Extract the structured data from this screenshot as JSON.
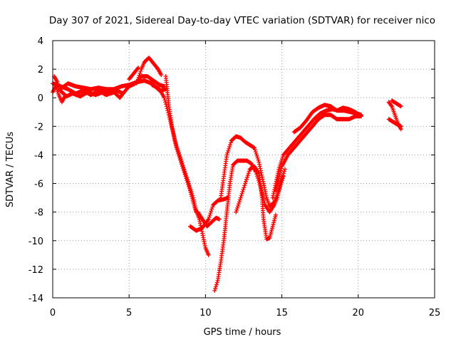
{
  "chart_data": {
    "type": "scatter",
    "title": "Day 307 of 2021, Sidereal Day-to-day VTEC variation (SDTVAR) for receiver nico",
    "xlabel": "GPS time / hours",
    "ylabel": "SDTVAR / TECUs",
    "xlim": [
      0,
      25
    ],
    "ylim": [
      -14,
      4
    ],
    "xticks": [
      0,
      5,
      10,
      15,
      20,
      25
    ],
    "yticks": [
      -14,
      -12,
      -10,
      -8,
      -6,
      -4,
      -2,
      0,
      2,
      4
    ],
    "grid": true,
    "marker": "plus",
    "series": [
      {
        "name": "SDTVAR",
        "color": "#ff0000",
        "tracks": [
          [
            [
              0,
              0.4
            ],
            [
              0.2,
              0.8
            ],
            [
              0.4,
              0.2
            ],
            [
              0.6,
              -0.3
            ],
            [
              0.8,
              0.1
            ]
          ],
          [
            [
              0,
              1.0
            ],
            [
              0.3,
              0.9
            ],
            [
              0.6,
              0.7
            ],
            [
              1.0,
              1.0
            ],
            [
              1.5,
              0.8
            ],
            [
              2.0,
              0.7
            ],
            [
              2.5,
              0.6
            ],
            [
              3.0,
              0.7
            ],
            [
              3.5,
              0.6
            ],
            [
              4.0,
              0.6
            ],
            [
              4.5,
              0.8
            ],
            [
              5.0,
              0.9
            ],
            [
              5.5,
              1.1
            ],
            [
              6.0,
              1.2
            ],
            [
              6.5,
              1.0
            ],
            [
              7.0,
              0.5
            ],
            [
              7.4,
              0.6
            ]
          ],
          [
            [
              0.1,
              1.5
            ],
            [
              0.3,
              1.1
            ],
            [
              0.5,
              0.5
            ],
            [
              0.9,
              0.1
            ],
            [
              1.3,
              0.3
            ],
            [
              1.8,
              0.1
            ],
            [
              2.3,
              0.4
            ],
            [
              2.8,
              0.2
            ],
            [
              3.3,
              0.4
            ],
            [
              3.8,
              0.3
            ],
            [
              4.2,
              0.5
            ],
            [
              4.6,
              0.3
            ],
            [
              5.0,
              0.8
            ],
            [
              5.4,
              1.0
            ],
            [
              5.8,
              1.5
            ],
            [
              6.2,
              1.5
            ],
            [
              6.6,
              1.2
            ],
            [
              7.0,
              0.9
            ],
            [
              7.3,
              0.8
            ]
          ],
          [
            [
              0.5,
              0.8
            ],
            [
              1.0,
              0.6
            ],
            [
              1.5,
              0.3
            ],
            [
              2.0,
              0.5
            ],
            [
              2.5,
              0.2
            ],
            [
              3.0,
              0.5
            ],
            [
              3.5,
              0.2
            ],
            [
              4.0,
              0.4
            ],
            [
              4.4,
              0.0
            ],
            [
              4.6,
              0.3
            ]
          ],
          [
            [
              5.5,
              1.0
            ],
            [
              5.8,
              2.0
            ],
            [
              6.0,
              2.5
            ],
            [
              6.3,
              2.8
            ],
            [
              6.6,
              2.4
            ],
            [
              6.9,
              2.0
            ],
            [
              7.1,
              1.6
            ]
          ],
          [
            [
              5.0,
              1.3
            ],
            [
              5.3,
              1.7
            ],
            [
              5.6,
              2.1
            ]
          ],
          [
            [
              6.5,
              0.9
            ],
            [
              7.0,
              0.6
            ],
            [
              7.3,
              0.0
            ],
            [
              7.6,
              -1.2
            ],
            [
              7.9,
              -2.5
            ],
            [
              8.1,
              -3.5
            ],
            [
              8.4,
              -4.5
            ],
            [
              8.7,
              -5.5
            ],
            [
              9.0,
              -6.5
            ],
            [
              9.3,
              -7.7
            ],
            [
              9.6,
              -8.5
            ],
            [
              9.8,
              -9.5
            ],
            [
              10.0,
              -10.5
            ],
            [
              10.2,
              -11.0
            ]
          ],
          [
            [
              7.4,
              1.5
            ],
            [
              7.6,
              -0.5
            ],
            [
              7.8,
              -2.0
            ],
            [
              8.0,
              -3.0
            ],
            [
              8.3,
              -4.0
            ],
            [
              8.6,
              -5.0
            ],
            [
              8.9,
              -6.0
            ],
            [
              9.2,
              -7.0
            ],
            [
              9.4,
              -8.0
            ]
          ],
          [
            [
              9.5,
              -8.0
            ],
            [
              9.8,
              -8.5
            ],
            [
              10.1,
              -9.0
            ],
            [
              10.4,
              -8.7
            ],
            [
              10.7,
              -8.4
            ],
            [
              10.9,
              -8.5
            ]
          ],
          [
            [
              9.0,
              -9.0
            ],
            [
              9.4,
              -9.3
            ],
            [
              9.8,
              -9.1
            ],
            [
              10.2,
              -8.5
            ],
            [
              10.5,
              -7.5
            ],
            [
              10.8,
              -7.2
            ],
            [
              11.2,
              -7.1
            ],
            [
              11.5,
              -7.0
            ]
          ],
          [
            [
              10.6,
              -13.5
            ],
            [
              10.8,
              -12.8
            ],
            [
              11.0,
              -11.5
            ],
            [
              11.2,
              -10.0
            ],
            [
              11.4,
              -8.0
            ],
            [
              11.6,
              -6.0
            ],
            [
              11.8,
              -4.7
            ],
            [
              12.1,
              -4.4
            ],
            [
              12.4,
              -4.4
            ],
            [
              12.7,
              -4.4
            ],
            [
              13.0,
              -4.6
            ],
            [
              13.3,
              -5.2
            ],
            [
              13.6,
              -6.2
            ],
            [
              13.9,
              -7.5
            ],
            [
              14.2,
              -8.0
            ],
            [
              14.5,
              -7.5
            ],
            [
              14.7,
              -7.0
            ],
            [
              14.9,
              -6.0
            ],
            [
              15.2,
              -5.0
            ]
          ],
          [
            [
              11.0,
              -7.0
            ],
            [
              11.2,
              -5.5
            ],
            [
              11.4,
              -4.0
            ],
            [
              11.7,
              -3.0
            ],
            [
              12.0,
              -2.7
            ],
            [
              12.3,
              -2.8
            ],
            [
              12.6,
              -3.1
            ],
            [
              12.9,
              -3.3
            ],
            [
              13.2,
              -3.5
            ],
            [
              13.5,
              -4.5
            ],
            [
              13.8,
              -6.0
            ],
            [
              14.0,
              -7.0
            ],
            [
              14.2,
              -7.6
            ],
            [
              14.5,
              -7.3
            ],
            [
              14.8,
              -6.5
            ],
            [
              15.1,
              -5.5
            ]
          ],
          [
            [
              12.0,
              -8.0
            ],
            [
              12.3,
              -7.0
            ],
            [
              12.6,
              -6.0
            ],
            [
              12.9,
              -5.0
            ],
            [
              13.2,
              -4.8
            ],
            [
              13.5,
              -5.3
            ],
            [
              13.7,
              -7.0
            ],
            [
              13.8,
              -8.5
            ],
            [
              14.0,
              -9.9
            ],
            [
              14.2,
              -9.8
            ],
            [
              14.4,
              -9.0
            ],
            [
              14.6,
              -8.2
            ]
          ],
          [
            [
              14.4,
              -7.0
            ],
            [
              14.8,
              -5.0
            ],
            [
              15.1,
              -4.0
            ],
            [
              15.5,
              -3.5
            ],
            [
              15.9,
              -3.0
            ],
            [
              16.3,
              -2.5
            ],
            [
              16.7,
              -2.0
            ],
            [
              17.1,
              -1.5
            ],
            [
              17.5,
              -1.1
            ],
            [
              17.9,
              -0.9
            ],
            [
              18.3,
              -0.8
            ],
            [
              18.7,
              -0.9
            ],
            [
              19.1,
              -0.9
            ],
            [
              19.5,
              -1.0
            ],
            [
              19.9,
              -1.1
            ],
            [
              20.2,
              -1.2
            ]
          ],
          [
            [
              14.6,
              -6.5
            ],
            [
              15.0,
              -4.8
            ],
            [
              15.4,
              -4.0
            ],
            [
              15.8,
              -3.5
            ],
            [
              16.2,
              -3.0
            ],
            [
              16.6,
              -2.5
            ],
            [
              17.0,
              -2.0
            ],
            [
              17.4,
              -1.5
            ],
            [
              17.8,
              -1.2
            ],
            [
              18.2,
              -1.2
            ],
            [
              18.6,
              -1.5
            ],
            [
              19.0,
              -1.5
            ],
            [
              19.4,
              -1.5
            ],
            [
              19.8,
              -1.3
            ],
            [
              20.1,
              -1.3
            ]
          ],
          [
            [
              15.8,
              -2.4
            ],
            [
              16.2,
              -2.1
            ],
            [
              16.6,
              -1.6
            ],
            [
              17.0,
              -1.0
            ],
            [
              17.4,
              -0.7
            ],
            [
              17.8,
              -0.5
            ],
            [
              18.2,
              -0.6
            ],
            [
              18.6,
              -0.9
            ],
            [
              19.0,
              -0.7
            ],
            [
              19.4,
              -0.8
            ],
            [
              19.8,
              -1.0
            ],
            [
              20.2,
              -1.3
            ]
          ],
          [
            [
              22.0,
              -0.3
            ],
            [
              22.2,
              -0.6
            ],
            [
              22.4,
              -1.2
            ],
            [
              22.6,
              -1.8
            ],
            [
              22.8,
              -2.2
            ]
          ],
          [
            [
              22.2,
              -0.2
            ],
            [
              22.5,
              -0.4
            ],
            [
              22.8,
              -0.6
            ]
          ],
          [
            [
              22.0,
              -1.5
            ],
            [
              22.3,
              -1.7
            ],
            [
              22.6,
              -1.9
            ],
            [
              22.8,
              -2.0
            ]
          ]
        ]
      }
    ]
  }
}
